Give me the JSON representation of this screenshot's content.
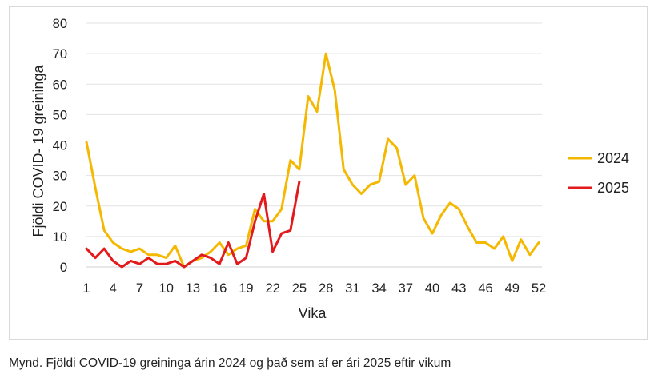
{
  "caption": "Mynd. Fjöldi COVID-19 greininga árin 2024 og það sem af er ári 2025 eftir vikum",
  "chart_data": {
    "type": "line",
    "title": "",
    "xlabel": "Vika",
    "ylabel": "Fjöldi COVID- 19 greininga",
    "ylim": [
      0,
      80
    ],
    "yticks": [
      0,
      10,
      20,
      30,
      40,
      50,
      60,
      70,
      80
    ],
    "xlim": [
      1,
      52
    ],
    "xticks": [
      1,
      4,
      7,
      10,
      13,
      16,
      19,
      22,
      25,
      28,
      31,
      34,
      37,
      40,
      43,
      46,
      49,
      52
    ],
    "grid": "horizontal",
    "legend": "right",
    "series": [
      {
        "name": "2024",
        "color": "#F5B800",
        "x": [
          1,
          2,
          3,
          4,
          5,
          6,
          7,
          8,
          9,
          10,
          11,
          12,
          13,
          14,
          15,
          16,
          17,
          18,
          19,
          20,
          21,
          22,
          23,
          24,
          25,
          26,
          27,
          28,
          29,
          30,
          31,
          32,
          33,
          34,
          35,
          36,
          37,
          38,
          39,
          40,
          41,
          42,
          43,
          44,
          45,
          46,
          47,
          48,
          49,
          50,
          51,
          52
        ],
        "values": [
          41,
          26,
          12,
          8,
          6,
          5,
          6,
          4,
          4,
          3,
          7,
          0,
          2,
          3,
          5,
          8,
          4,
          6,
          7,
          19,
          15,
          15,
          19,
          35,
          32,
          56,
          51,
          70,
          58,
          32,
          27,
          24,
          27,
          28,
          42,
          39,
          27,
          30,
          16,
          11,
          17,
          21,
          19,
          13,
          8,
          8,
          6,
          10,
          2,
          9,
          4,
          8
        ]
      },
      {
        "name": "2025",
        "color": "#E31A1C",
        "x": [
          1,
          2,
          3,
          4,
          5,
          6,
          7,
          8,
          9,
          10,
          11,
          12,
          13,
          14,
          15,
          16,
          17,
          18,
          19,
          20,
          21,
          22,
          23,
          24,
          25
        ],
        "values": [
          6,
          3,
          6,
          2,
          0,
          2,
          1,
          3,
          1,
          1,
          2,
          0,
          2,
          4,
          3,
          1,
          8,
          1,
          3,
          15,
          24,
          5,
          11,
          12,
          28
        ]
      }
    ]
  }
}
